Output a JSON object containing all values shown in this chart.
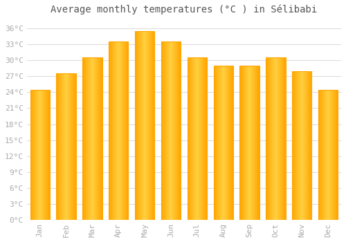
{
  "title": "Average monthly temperatures (°C ) in Sélibabi",
  "months": [
    "Jan",
    "Feb",
    "Mar",
    "Apr",
    "May",
    "Jun",
    "Jul",
    "Aug",
    "Sep",
    "Oct",
    "Nov",
    "Dec"
  ],
  "values": [
    24.5,
    27.5,
    30.5,
    33.5,
    35.5,
    33.5,
    30.5,
    29.0,
    29.0,
    30.5,
    28.0,
    24.5
  ],
  "bar_color_left": "#FFA500",
  "bar_color_center": "#FFD040",
  "bar_color_right": "#FFA500",
  "background_color": "#FFFFFF",
  "grid_color": "#DDDDDD",
  "yticks": [
    0,
    3,
    6,
    9,
    12,
    15,
    18,
    21,
    24,
    27,
    30,
    33,
    36
  ],
  "ylim": [
    0,
    37.5
  ],
  "tick_label_color": "#AAAAAA",
  "title_color": "#555555",
  "title_fontsize": 10,
  "tick_fontsize": 8,
  "font_family": "monospace"
}
